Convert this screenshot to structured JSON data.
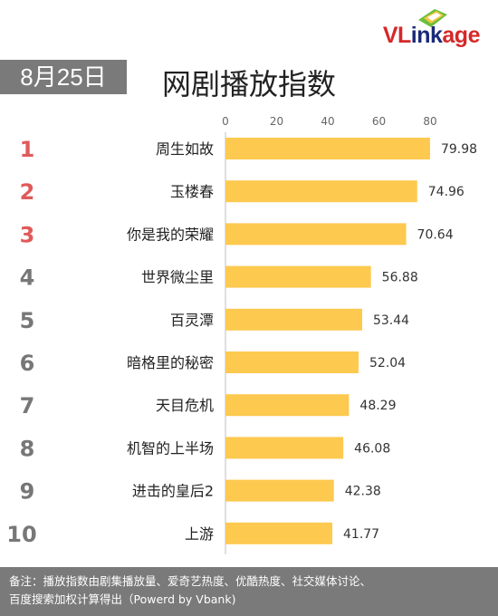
{
  "date_badge": "8月25日",
  "title": "网剧播放指数",
  "logo": {
    "part1": "VL",
    "part2": "ink",
    "part3": "age"
  },
  "footer": {
    "line1": "备注：播放指数由剧集播放量、爱奇艺热度、优酷热度、社交媒体讨论、",
    "line2": "百度搜索加权计算得出（Powerd by Vbank)"
  },
  "colors": {
    "bar": "#fdc94f",
    "rank_top": "#e05a5a",
    "rank_other": "#777777",
    "badge": "#7a7a7a"
  },
  "chart_data": {
    "type": "bar",
    "orientation": "horizontal",
    "title": "网剧播放指数",
    "categories": [
      "周生如故",
      "玉楼春",
      "你是我的荣耀",
      "世界微尘里",
      "百灵潭",
      "暗格里的秘密",
      "天目危机",
      "机智的上半场",
      "进击的皇后2",
      "上游"
    ],
    "ranks": [
      "1",
      "2",
      "3",
      "4",
      "5",
      "6",
      "7",
      "8",
      "9",
      "10"
    ],
    "values": [
      79.98,
      74.96,
      70.64,
      56.88,
      53.44,
      52.04,
      48.29,
      46.08,
      42.38,
      41.77
    ],
    "labels": [
      "79.98",
      "74.96",
      "70.64",
      "56.88",
      "53.44",
      "52.04",
      "48.29",
      "46.08",
      "42.38",
      "41.77"
    ],
    "xlim": [
      0,
      80
    ],
    "ticks": [
      "0",
      "20",
      "40",
      "60",
      "80"
    ],
    "grid": false,
    "legend": "none"
  }
}
